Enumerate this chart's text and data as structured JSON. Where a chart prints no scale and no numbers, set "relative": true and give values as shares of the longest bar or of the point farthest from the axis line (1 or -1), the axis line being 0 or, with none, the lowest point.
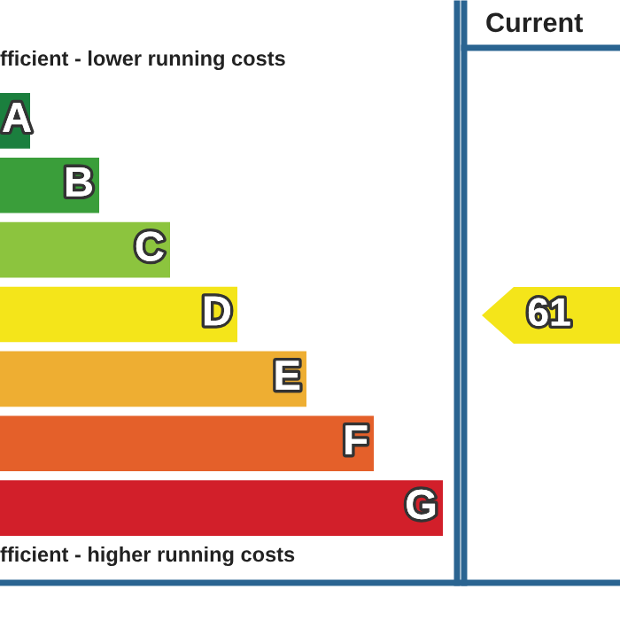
{
  "chart_data": {
    "type": "bar",
    "orientation": "horizontal",
    "relative": true,
    "title": "fficient - lower running costs",
    "categories": [
      "A",
      "B",
      "C",
      "D",
      "E",
      "F",
      "G"
    ],
    "values": [
      0.068,
      0.224,
      0.384,
      0.536,
      0.692,
      0.844,
      1
    ],
    "colors": [
      "#1b7f3e",
      "#3a9e3a",
      "#8cc43e",
      "#f4e51a",
      "#eeae32",
      "#e4602a",
      "#d21f2a"
    ],
    "annotations": [
      "fficient - higher running costs",
      "Current",
      "61"
    ]
  }
}
